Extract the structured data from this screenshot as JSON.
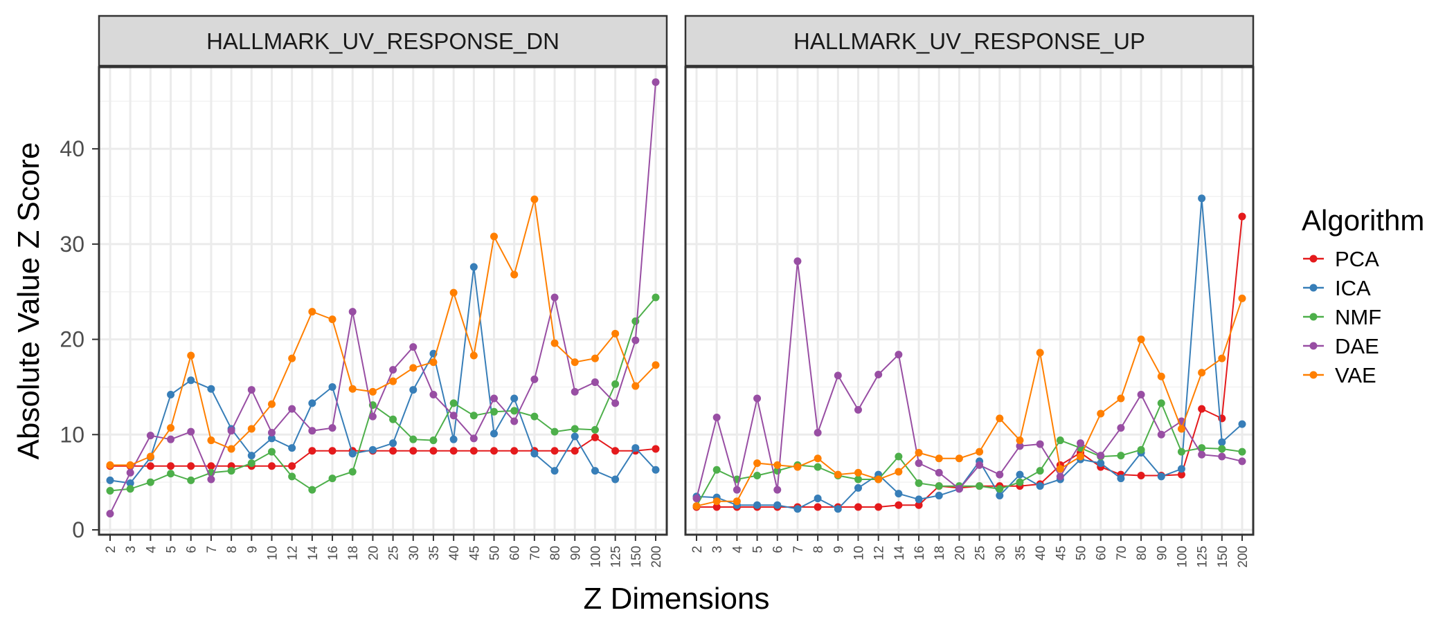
{
  "chart_data": {
    "type": "line",
    "facets": [
      "HALLMARK_UV_RESPONSE_DN",
      "HALLMARK_UV_RESPONSE_UP"
    ],
    "x": [
      "2",
      "3",
      "4",
      "5",
      "6",
      "7",
      "8",
      "9",
      "10",
      "12",
      "14",
      "16",
      "18",
      "20",
      "25",
      "30",
      "35",
      "40",
      "45",
      "50",
      "60",
      "70",
      "80",
      "90",
      "100",
      "125",
      "150",
      "200"
    ],
    "xlabel": "Z Dimensions",
    "ylabel": "Absolute Value Z Score",
    "ylim": [
      0,
      48
    ],
    "yticks": [
      0,
      10,
      20,
      30,
      40
    ],
    "grid": true,
    "legend": {
      "title": "Algorithm",
      "position": "right",
      "entries": [
        "PCA",
        "ICA",
        "NMF",
        "DAE",
        "VAE"
      ]
    },
    "series_colors": {
      "PCA": "#E41A1C",
      "ICA": "#377EB8",
      "NMF": "#4DAF4A",
      "DAE": "#984EA3",
      "VAE": "#FF7F00"
    },
    "panels": [
      {
        "facet": "HALLMARK_UV_RESPONSE_DN",
        "series": [
          {
            "name": "PCA",
            "values": [
              6.7,
              6.7,
              6.7,
              6.7,
              6.7,
              6.7,
              6.7,
              6.7,
              6.7,
              6.7,
              8.3,
              8.3,
              8.3,
              8.3,
              8.3,
              8.3,
              8.3,
              8.3,
              8.3,
              8.3,
              8.3,
              8.3,
              8.3,
              8.3,
              9.7,
              8.3,
              8.3,
              8.5
            ]
          },
          {
            "name": "ICA",
            "values": [
              5.2,
              4.9,
              7.6,
              14.2,
              15.7,
              14.8,
              10.6,
              7.8,
              9.6,
              8.6,
              13.3,
              15.0,
              8.0,
              8.4,
              9.1,
              14.7,
              18.5,
              9.5,
              27.6,
              10.1,
              13.8,
              8.0,
              6.2,
              9.8,
              6.2,
              5.3,
              8.6,
              6.3
            ]
          },
          {
            "name": "NMF",
            "values": [
              4.1,
              4.3,
              5.0,
              5.9,
              5.2,
              6.0,
              6.2,
              7.0,
              8.2,
              5.6,
              4.2,
              5.4,
              6.1,
              13.1,
              11.6,
              9.5,
              9.4,
              13.3,
              12.0,
              12.4,
              12.5,
              11.9,
              10.3,
              10.6,
              10.5,
              15.3,
              21.9,
              24.4
            ]
          },
          {
            "name": "DAE",
            "values": [
              1.7,
              6.0,
              9.9,
              9.5,
              10.3,
              5.3,
              10.4,
              14.7,
              10.2,
              12.7,
              10.4,
              10.7,
              22.9,
              11.9,
              16.8,
              19.2,
              14.2,
              12.0,
              9.6,
              13.8,
              11.4,
              15.8,
              24.4,
              14.5,
              15.5,
              13.3,
              19.9,
              47.0
            ]
          },
          {
            "name": "VAE",
            "values": [
              6.8,
              6.8,
              7.7,
              10.7,
              18.3,
              9.4,
              8.5,
              10.6,
              13.2,
              18.0,
              22.9,
              22.1,
              14.8,
              14.5,
              15.6,
              17.0,
              17.6,
              24.9,
              18.3,
              30.8,
              26.8,
              34.7,
              19.6,
              17.6,
              18.0,
              20.6,
              15.1,
              17.3
            ]
          }
        ]
      },
      {
        "facet": "HALLMARK_UV_RESPONSE_UP",
        "series": [
          {
            "name": "PCA",
            "values": [
              2.4,
              2.4,
              2.4,
              2.4,
              2.4,
              2.4,
              2.4,
              2.4,
              2.4,
              2.4,
              2.6,
              2.6,
              4.6,
              4.4,
              4.6,
              4.6,
              4.6,
              4.8,
              6.8,
              8.1,
              6.6,
              5.8,
              5.7,
              5.7,
              5.8,
              12.7,
              11.7,
              32.9
            ]
          },
          {
            "name": "ICA",
            "values": [
              3.5,
              3.4,
              2.6,
              2.6,
              2.6,
              2.2,
              3.3,
              2.2,
              4.4,
              5.8,
              3.8,
              3.2,
              3.6,
              4.3,
              7.2,
              3.6,
              5.8,
              4.6,
              5.3,
              7.4,
              7.0,
              5.4,
              8.1,
              5.6,
              6.4,
              34.8,
              9.2,
              11.1
            ]
          },
          {
            "name": "NMF",
            "values": [
              2.5,
              6.3,
              5.3,
              5.7,
              6.2,
              6.8,
              6.6,
              5.7,
              5.3,
              5.3,
              7.7,
              4.9,
              4.6,
              4.6,
              4.6,
              4.3,
              5.0,
              6.2,
              9.4,
              8.6,
              7.7,
              7.8,
              8.4,
              13.3,
              8.2,
              8.6,
              8.5,
              8.2
            ]
          },
          {
            "name": "DAE",
            "values": [
              3.3,
              11.8,
              4.2,
              13.8,
              4.2,
              28.2,
              10.2,
              16.2,
              12.6,
              16.3,
              18.4,
              7.0,
              6.0,
              4.3,
              6.8,
              5.8,
              8.8,
              9.0,
              5.6,
              9.1,
              7.8,
              10.7,
              14.2,
              10.0,
              11.4,
              7.9,
              7.7,
              7.2
            ]
          },
          {
            "name": "VAE",
            "values": [
              2.5,
              3.0,
              3.0,
              7.0,
              6.8,
              6.6,
              7.5,
              5.8,
              6.0,
              5.3,
              6.1,
              8.1,
              7.5,
              7.5,
              8.2,
              11.7,
              9.4,
              18.6,
              6.4,
              7.7,
              12.2,
              13.8,
              20.0,
              16.1,
              10.6,
              16.5,
              18.0,
              24.3
            ]
          }
        ]
      }
    ]
  }
}
